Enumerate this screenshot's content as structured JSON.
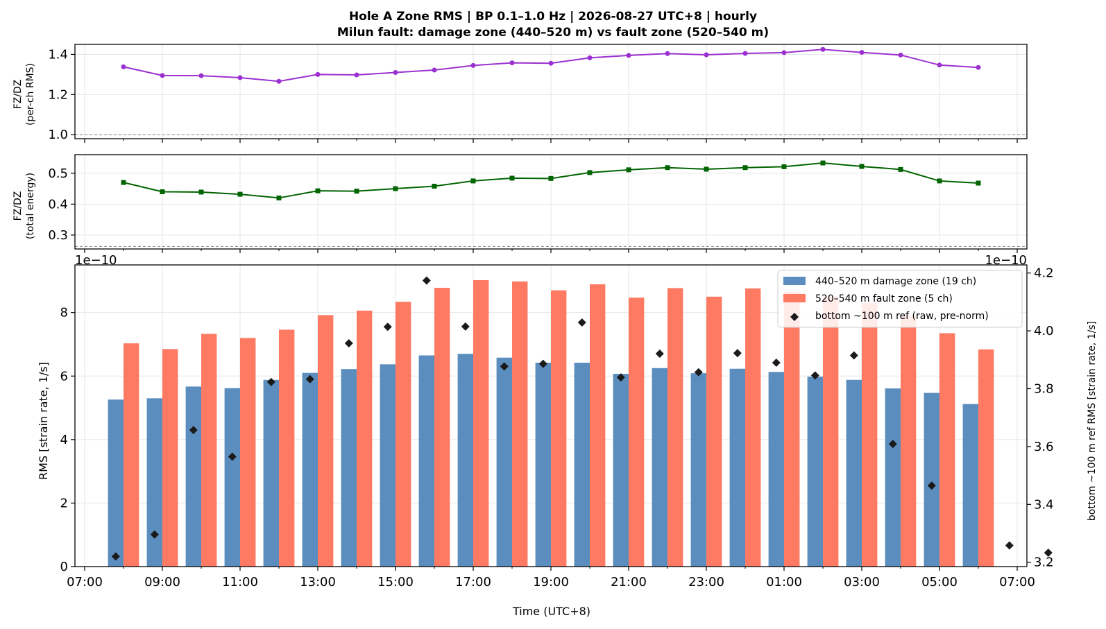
{
  "title_line1": "Hole A Zone RMS  |  BP 0.1–1.0 Hz  |  2026-08-27 UTC+8  |  hourly",
  "title_line2": "Milun fault: damage zone (440–520 m) vs fault zone (520–540 m)",
  "colors": {
    "ratio_rms": "#9b30d0",
    "ratio_energy": "#006400",
    "damage_zone": "#5b8dbe",
    "fault_zone": "#ff7a63",
    "reference": "#1a1a1a",
    "grid": "#e6e6e6",
    "refline": "#888888"
  },
  "chart_data": [
    {
      "type": "line",
      "ylabel_line1": "FZ/DZ",
      "ylabel_line2": "(per-ch RMS)",
      "ylim": [
        0.98,
        1.45
      ],
      "yticks": [
        1.0,
        1.2,
        1.4
      ],
      "ytick_labels": [
        "1.0",
        "1.2",
        "1.4"
      ],
      "reference_line": 1.0,
      "x_hours": [
        8,
        9,
        10,
        11,
        12,
        13,
        14,
        15,
        16,
        17,
        18,
        19,
        20,
        21,
        22,
        23,
        24,
        25,
        26,
        27,
        28,
        29,
        30
      ],
      "series": [
        {
          "values": [
            1.338,
            1.295,
            1.294,
            1.284,
            1.266,
            1.3,
            1.298,
            1.31,
            1.322,
            1.345,
            1.358,
            1.356,
            1.383,
            1.395,
            1.404,
            1.398,
            1.405,
            1.409,
            1.425,
            1.41,
            1.397,
            1.347,
            1.335
          ],
          "marker": "circle"
        }
      ]
    },
    {
      "type": "line",
      "ylabel_line1": "FZ/DZ",
      "ylabel_line2": "(total energy)",
      "ylim": [
        0.255,
        0.56
      ],
      "yticks": [
        0.3,
        0.4,
        0.5
      ],
      "ytick_labels": [
        "0.3",
        "0.4",
        "0.5"
      ],
      "reference_line": 0.263,
      "x_hours": [
        8,
        9,
        10,
        11,
        12,
        13,
        14,
        15,
        16,
        17,
        18,
        19,
        20,
        21,
        22,
        23,
        24,
        25,
        26,
        27,
        28,
        29,
        30
      ],
      "series": [
        {
          "values": [
            0.47,
            0.44,
            0.439,
            0.432,
            0.42,
            0.443,
            0.442,
            0.45,
            0.458,
            0.475,
            0.484,
            0.483,
            0.502,
            0.511,
            0.518,
            0.513,
            0.518,
            0.521,
            0.533,
            0.522,
            0.512,
            0.475,
            0.468
          ],
          "marker": "square"
        }
      ]
    },
    {
      "type": "bar",
      "xlabel": "Time (UTC+8)",
      "ylabel": "RMS  [strain rate, 1/s]",
      "ylabel_right": "bottom ~100 m ref RMS  [strain rate, 1/s]",
      "offset_left": "1e−10",
      "offset_right": "1e−10",
      "ylim": [
        0,
        9.5
      ],
      "yticks": [
        0,
        2,
        4,
        6,
        8
      ],
      "ytick_labels": [
        "0",
        "2",
        "4",
        "6",
        "8"
      ],
      "ylim_right": [
        3.185,
        4.228
      ],
      "yticks_right": [
        3.2,
        3.4,
        3.6,
        3.8,
        4.0,
        4.2
      ],
      "ytick_labels_right": [
        "3.2",
        "3.4",
        "3.6",
        "3.8",
        "4.0",
        "4.2"
      ],
      "xlim_hours": [
        6.75,
        31.25
      ],
      "xticks_hours": [
        7,
        9,
        11,
        13,
        15,
        17,
        19,
        21,
        23,
        25,
        27,
        29,
        31
      ],
      "xtick_labels": [
        "07:00",
        "09:00",
        "11:00",
        "13:00",
        "15:00",
        "17:00",
        "19:00",
        "21:00",
        "23:00",
        "01:00",
        "03:00",
        "05:00",
        "07:00"
      ],
      "legend_position": "upper right",
      "series": [
        {
          "name": "440–520 m  damage zone (19 ch)",
          "kind": "bar",
          "x_hours": [
            8,
            9,
            10,
            11,
            12,
            13,
            14,
            15,
            16,
            17,
            18,
            19,
            20,
            21,
            22,
            23,
            24,
            25,
            26,
            27,
            28,
            29,
            30
          ],
          "values": [
            5.26,
            5.3,
            5.67,
            5.62,
            5.88,
            6.1,
            6.22,
            6.37,
            6.65,
            6.7,
            6.58,
            6.42,
            6.42,
            6.07,
            6.25,
            6.09,
            6.23,
            6.13,
            5.98,
            5.88,
            5.61,
            5.47,
            5.12
          ]
        },
        {
          "name": "520–540 m  fault zone (5 ch)",
          "kind": "bar",
          "x_hours": [
            8,
            9,
            10,
            11,
            12,
            13,
            14,
            15,
            16,
            17,
            18,
            19,
            20,
            21,
            22,
            23,
            24,
            25,
            26,
            27,
            28,
            29,
            30
          ],
          "values": [
            7.03,
            6.85,
            7.33,
            7.2,
            7.46,
            7.92,
            8.06,
            8.34,
            8.78,
            9.02,
            8.98,
            8.7,
            8.89,
            8.47,
            8.77,
            8.5,
            8.76,
            8.66,
            8.5,
            8.3,
            7.9,
            7.35,
            6.84
          ]
        },
        {
          "name": "bottom ~100 m ref (raw, pre-norm)",
          "kind": "scatter",
          "axis": "right",
          "x_hours": [
            8,
            9,
            10,
            11,
            12,
            13,
            14,
            15,
            16,
            17,
            18,
            19,
            20,
            21,
            22,
            23,
            24,
            25,
            26,
            27,
            28,
            29,
            31
          ],
          "values": [
            3.22,
            3.296,
            3.657,
            3.565,
            3.823,
            3.833,
            3.957,
            4.014,
            4.174,
            4.015,
            3.877,
            3.886,
            4.029,
            3.839,
            3.921,
            3.857,
            3.923,
            3.89,
            3.846,
            3.915,
            3.609,
            3.465,
            3.258
          ]
        }
      ]
    }
  ],
  "extra_point": {
    "x_hours": 32,
    "value": 3.233
  }
}
